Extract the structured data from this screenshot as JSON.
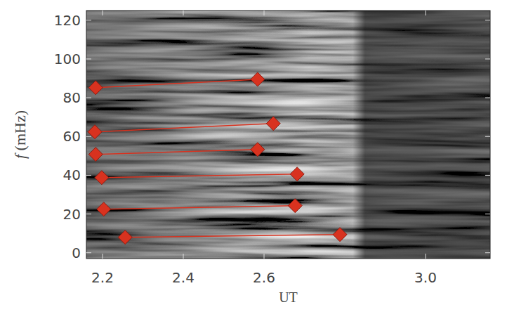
{
  "chart_data": {
    "type": "line",
    "x_label": "UT",
    "y_label": "f (mHz)",
    "xlim": [
      2.16,
      3.16
    ],
    "ylim": [
      -3,
      125
    ],
    "xticks": [
      2.2,
      2.4,
      2.6,
      {
        "value": 3,
        "label": "3.0"
      }
    ],
    "yticks": [
      0,
      20,
      40,
      60,
      80,
      100,
      120
    ],
    "marker": "diamond",
    "color": "#d8321f",
    "series": [
      {
        "x": [
          2.183,
          2.584
        ],
        "values": [
          85.2,
          89.5
        ]
      },
      {
        "x": [
          2.181,
          2.623
        ],
        "values": [
          62.4,
          66.7
        ]
      },
      {
        "x": [
          2.183,
          2.584
        ],
        "values": [
          50.8,
          53.3
        ]
      },
      {
        "x": [
          2.198,
          2.682
        ],
        "values": [
          38.8,
          40.6
        ]
      },
      {
        "x": [
          2.203,
          2.677
        ],
        "values": [
          22.5,
          24.3
        ]
      },
      {
        "x": [
          2.256,
          2.788
        ],
        "values": [
          8.0,
          9.4
        ]
      }
    ]
  }
}
